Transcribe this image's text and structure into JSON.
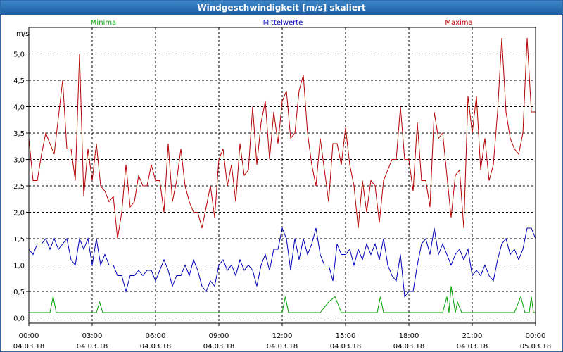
{
  "window": {
    "title": "Windgeschwindigkeit [m/s] skaliert"
  },
  "chart_data": {
    "type": "line",
    "title": "Windgeschwindigkeit [m/s] skaliert",
    "ylabel": "m/s",
    "ylim": [
      -0.1,
      5.5
    ],
    "y_ticks": [
      "0,0",
      "0,5",
      "1,0",
      "1,5",
      "2,0",
      "2,5",
      "3,0",
      "3,5",
      "4,0",
      "4,5",
      "5,0"
    ],
    "x_range": [
      "04.03.18 00:00",
      "05.03.18 00:00"
    ],
    "x_ticks": [
      {
        "time": "00:00",
        "date": "04.03.18"
      },
      {
        "time": "03:00",
        "date": "04.03.18"
      },
      {
        "time": "06:00",
        "date": "04.03.18"
      },
      {
        "time": "09:00",
        "date": "04.03.18"
      },
      {
        "time": "12:00",
        "date": "04.03.18"
      },
      {
        "time": "15:00",
        "date": "04.03.18"
      },
      {
        "time": "18:00",
        "date": "04.03.18"
      },
      {
        "time": "21:00",
        "date": "04.03.18"
      },
      {
        "time": "00:00",
        "date": "05.03.18"
      }
    ],
    "grid": true,
    "legend_position": "top",
    "series": [
      {
        "name": "Minima",
        "color": "#00a000",
        "x_hours": [
          0.0,
          1.0,
          1.15,
          1.3,
          3.2,
          3.35,
          3.5,
          12.0,
          12.15,
          12.3,
          13.8,
          14.2,
          14.5,
          14.8,
          16.5,
          16.65,
          16.8,
          18.0,
          19.6,
          19.8,
          19.9,
          20.0,
          20.2,
          20.3,
          20.5,
          20.8,
          21.0,
          23.0,
          23.3,
          23.5,
          23.6,
          23.7,
          23.8,
          23.9,
          24.0
        ],
        "values": [
          0.1,
          0.1,
          0.4,
          0.1,
          0.1,
          0.3,
          0.1,
          0.1,
          0.4,
          0.1,
          0.1,
          0.3,
          0.4,
          0.1,
          0.1,
          0.4,
          0.1,
          0.1,
          0.1,
          0.4,
          0.1,
          0.6,
          0.1,
          0.3,
          0.1,
          0.1,
          0.1,
          0.1,
          0.4,
          0.1,
          0.1,
          0.1,
          0.4,
          0.1,
          0.1
        ]
      },
      {
        "name": "Mittelwerte",
        "color": "#0000b4",
        "x_hours": [
          0.0,
          0.2,
          0.4,
          0.6,
          0.8,
          1.0,
          1.2,
          1.4,
          1.6,
          1.8,
          2.0,
          2.2,
          2.4,
          2.6,
          2.8,
          3.0,
          3.2,
          3.4,
          3.6,
          3.8,
          4.0,
          4.2,
          4.4,
          4.6,
          4.8,
          5.0,
          5.2,
          5.4,
          5.6,
          5.8,
          6.0,
          6.2,
          6.4,
          6.6,
          6.8,
          7.0,
          7.2,
          7.4,
          7.6,
          7.8,
          8.0,
          8.2,
          8.4,
          8.6,
          8.8,
          9.0,
          9.2,
          9.4,
          9.6,
          9.8,
          10.0,
          10.2,
          10.4,
          10.6,
          10.8,
          11.0,
          11.2,
          11.4,
          11.6,
          11.8,
          12.0,
          12.2,
          12.4,
          12.6,
          12.8,
          13.0,
          13.2,
          13.4,
          13.6,
          13.8,
          14.0,
          14.2,
          14.4,
          14.6,
          14.8,
          15.0,
          15.2,
          15.4,
          15.6,
          15.8,
          16.0,
          16.2,
          16.4,
          16.6,
          16.8,
          17.0,
          17.2,
          17.4,
          17.6,
          17.8,
          18.0,
          18.2,
          18.4,
          18.6,
          18.8,
          19.0,
          19.2,
          19.4,
          19.6,
          19.8,
          20.0,
          20.2,
          20.4,
          20.6,
          20.8,
          21.0,
          21.2,
          21.4,
          21.6,
          21.8,
          22.0,
          22.2,
          22.4,
          22.6,
          22.8,
          23.0,
          23.2,
          23.4,
          23.6,
          23.8,
          24.0
        ],
        "values": [
          1.3,
          1.2,
          1.4,
          1.4,
          1.5,
          1.3,
          1.5,
          1.3,
          1.4,
          1.5,
          1.1,
          1.0,
          1.5,
          1.3,
          1.5,
          1.0,
          1.5,
          1.0,
          1.2,
          1.0,
          1.0,
          0.8,
          0.8,
          0.5,
          0.8,
          0.8,
          0.9,
          0.8,
          0.9,
          0.9,
          0.7,
          0.9,
          1.1,
          0.9,
          0.6,
          0.8,
          0.8,
          1.0,
          0.8,
          1.1,
          0.9,
          0.6,
          0.5,
          0.7,
          0.6,
          1.0,
          1.1,
          0.9,
          1.0,
          0.8,
          1.1,
          0.9,
          1.0,
          0.9,
          0.6,
          1.0,
          1.2,
          0.9,
          1.3,
          1.3,
          1.7,
          1.5,
          0.9,
          1.5,
          1.1,
          1.5,
          1.2,
          1.4,
          1.7,
          1.2,
          1.0,
          1.0,
          0.7,
          1.4,
          1.2,
          1.2,
          1.3,
          1.0,
          1.3,
          1.1,
          1.4,
          1.2,
          1.4,
          1.1,
          1.5,
          1.0,
          0.8,
          0.7,
          1.2,
          0.4,
          0.5,
          0.5,
          1.0,
          1.4,
          1.5,
          1.2,
          1.7,
          1.2,
          1.4,
          1.2,
          1.0,
          1.2,
          1.3,
          1.1,
          1.3,
          0.8,
          0.9,
          0.8,
          1.0,
          0.8,
          0.7,
          1.1,
          1.4,
          1.5,
          1.2,
          1.3,
          1.1,
          1.3,
          1.7,
          1.7,
          1.5
        ]
      },
      {
        "name": "Maxima",
        "color": "#b40000",
        "x_hours": [
          0.0,
          0.2,
          0.4,
          0.6,
          0.8,
          1.0,
          1.2,
          1.4,
          1.6,
          1.8,
          2.0,
          2.2,
          2.4,
          2.6,
          2.8,
          3.0,
          3.2,
          3.4,
          3.6,
          3.8,
          4.0,
          4.2,
          4.4,
          4.6,
          4.8,
          5.0,
          5.2,
          5.4,
          5.6,
          5.8,
          6.0,
          6.2,
          6.4,
          6.6,
          6.8,
          7.0,
          7.2,
          7.4,
          7.6,
          7.8,
          8.0,
          8.2,
          8.4,
          8.6,
          8.8,
          9.0,
          9.2,
          9.4,
          9.6,
          9.8,
          10.0,
          10.2,
          10.4,
          10.6,
          10.8,
          11.0,
          11.2,
          11.4,
          11.6,
          11.8,
          12.0,
          12.2,
          12.4,
          12.6,
          12.8,
          13.0,
          13.2,
          13.4,
          13.6,
          13.8,
          14.0,
          14.2,
          14.4,
          14.6,
          14.8,
          15.0,
          15.2,
          15.4,
          15.6,
          15.8,
          16.0,
          16.2,
          16.4,
          16.6,
          16.8,
          17.0,
          17.2,
          17.4,
          17.6,
          17.8,
          18.0,
          18.2,
          18.4,
          18.6,
          18.8,
          19.0,
          19.2,
          19.4,
          19.6,
          19.8,
          20.0,
          20.2,
          20.4,
          20.6,
          20.8,
          21.0,
          21.2,
          21.4,
          21.6,
          21.8,
          22.0,
          22.2,
          22.4,
          22.6,
          22.8,
          23.0,
          23.2,
          23.4,
          23.6,
          23.8,
          24.0
        ],
        "values": [
          3.4,
          2.6,
          2.6,
          3.1,
          3.5,
          3.3,
          3.1,
          3.8,
          4.5,
          3.2,
          3.2,
          2.6,
          5.0,
          2.3,
          3.2,
          2.6,
          3.3,
          2.5,
          2.4,
          2.2,
          2.3,
          1.5,
          2.0,
          2.9,
          2.1,
          2.2,
          2.7,
          2.5,
          2.5,
          2.9,
          2.6,
          2.6,
          2.0,
          3.3,
          2.2,
          2.6,
          3.2,
          2.5,
          2.2,
          2.0,
          2.0,
          1.7,
          2.1,
          2.5,
          1.9,
          3.0,
          3.2,
          2.5,
          2.9,
          2.2,
          3.3,
          2.7,
          2.8,
          4.0,
          2.9,
          3.7,
          4.1,
          3.0,
          3.9,
          3.3,
          4.1,
          4.3,
          3.4,
          3.5,
          4.3,
          4.6,
          3.5,
          2.9,
          2.5,
          3.4,
          2.8,
          2.2,
          3.3,
          3.3,
          2.9,
          3.6,
          2.9,
          2.5,
          1.7,
          2.6,
          2.0,
          2.6,
          2.5,
          1.8,
          2.6,
          2.8,
          3.0,
          3.0,
          4.0,
          3.0,
          3.0,
          2.4,
          3.7,
          2.6,
          2.6,
          2.1,
          3.9,
          3.4,
          3.5,
          2.7,
          1.9,
          2.7,
          2.8,
          1.7,
          4.2,
          3.5,
          4.2,
          2.8,
          3.4,
          2.6,
          2.9,
          3.9,
          5.3,
          3.9,
          3.4,
          3.2,
          3.1,
          3.5,
          5.3,
          3.9,
          3.9
        ]
      }
    ]
  }
}
